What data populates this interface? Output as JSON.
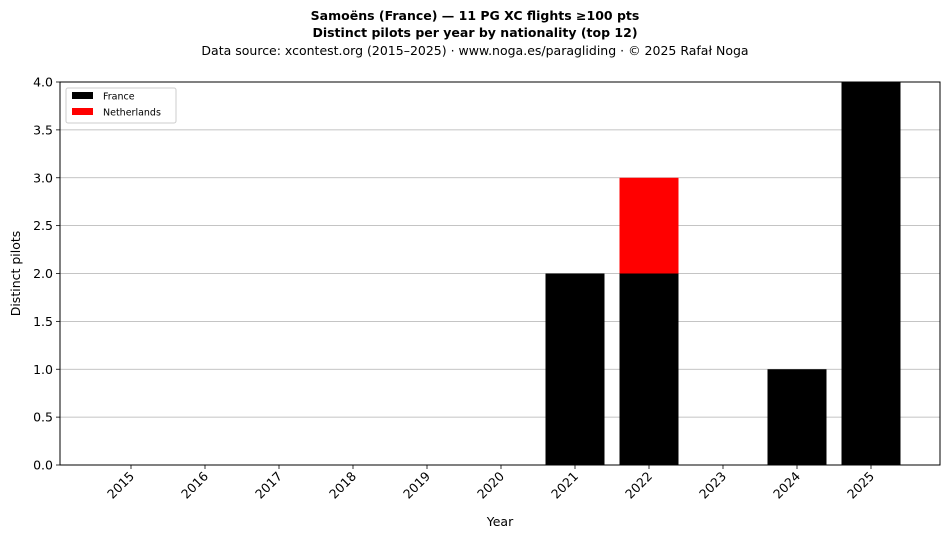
{
  "chart_data": {
    "type": "bar",
    "stacked": true,
    "title": "Samoëns (France)  —  11 PG XC flights ≥100 pts",
    "subtitle": "Distinct pilots per year by nationality (top 12)",
    "source_note": "Data source: xcontest.org (2015–2025)  ·  www.noga.es/paragliding  ·  © 2025 Rafał Noga",
    "xlabel": "Year",
    "ylabel": "Distinct pilots",
    "ylim": [
      0,
      4
    ],
    "yticks": [
      "0.0",
      "0.5",
      "1.0",
      "1.5",
      "2.0",
      "2.5",
      "3.0",
      "3.5",
      "4.0"
    ],
    "categories": [
      "2015",
      "2016",
      "2017",
      "2018",
      "2019",
      "2020",
      "2021",
      "2022",
      "2023",
      "2024",
      "2025"
    ],
    "series": [
      {
        "name": "France",
        "color": "#000000",
        "values": [
          0,
          0,
          0,
          0,
          0,
          0,
          2,
          2,
          0,
          1,
          4
        ]
      },
      {
        "name": "Netherlands",
        "color": "#ff0000",
        "values": [
          0,
          0,
          0,
          0,
          0,
          0,
          0,
          1,
          0,
          0,
          0
        ]
      }
    ],
    "grid": "y",
    "legend_position": "top-left"
  }
}
